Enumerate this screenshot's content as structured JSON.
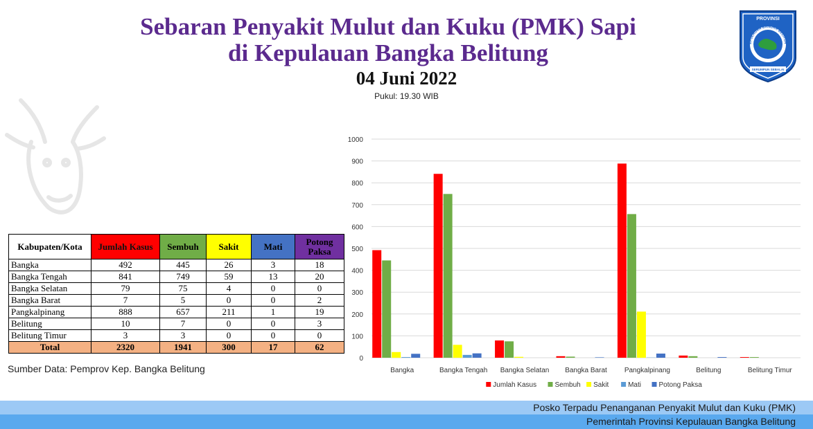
{
  "header": {
    "title_line1": "Sebaran Penyakit Mulut dan Kuku (PMK) Sapi",
    "title_line2": "di Kepulauan Bangka Belitung",
    "date": "04 Juni 2022",
    "time": "Pukul: 19.30 WIB"
  },
  "logo": {
    "top_text": "PROVINSI",
    "ring_text": "KEPULAUAN BANGKA BELITUNG",
    "motto": "SERUMPUN SEBALAI",
    "colors": {
      "shield": "#1f63c4",
      "border": "#ffffff",
      "island": "#2e9e3e"
    }
  },
  "table": {
    "headers": [
      "Kabupaten/Kota",
      "Jumlah Kasus",
      "Sembuh",
      "Sakit",
      "Mati",
      "Potong Paksa"
    ],
    "rows": [
      [
        "Bangka",
        "492",
        "445",
        "26",
        "3",
        "18"
      ],
      [
        "Bangka Tengah",
        "841",
        "749",
        "59",
        "13",
        "20"
      ],
      [
        "Bangka Selatan",
        "79",
        "75",
        "4",
        "0",
        "0"
      ],
      [
        "Bangka Barat",
        "7",
        "5",
        "0",
        "0",
        "2"
      ],
      [
        "Pangkalpinang",
        "888",
        "657",
        "211",
        "1",
        "19"
      ],
      [
        "Belitung",
        "10",
        "7",
        "0",
        "0",
        "3"
      ],
      [
        "Belitung Timur",
        "3",
        "3",
        "0",
        "0",
        "0"
      ]
    ],
    "total": [
      "Total",
      "2320",
      "1941",
      "300",
      "17",
      "62"
    ]
  },
  "source": "Sumber Data: Pemprov Kep. Bangka Belitung",
  "footer": {
    "line1": "Posko Terpadu Penanganan Penyakit Mulut dan Kuku (PMK)",
    "line2": "Pemerintah Provinsi Kepulauan Bangka Belitung"
  },
  "chart_data": {
    "type": "bar",
    "categories": [
      "Bangka",
      "Bangka Tengah",
      "Bangka Selatan",
      "Bangka Barat",
      "Pangkalpinang",
      "Belitung",
      "Belitung Timur"
    ],
    "series": [
      {
        "name": "Jumlah Kasus",
        "color": "#ff0000",
        "values": [
          492,
          841,
          79,
          7,
          888,
          10,
          3
        ]
      },
      {
        "name": "Sembuh",
        "color": "#70ad47",
        "values": [
          445,
          749,
          75,
          5,
          657,
          7,
          3
        ]
      },
      {
        "name": "Sakit",
        "color": "#ffff00",
        "values": [
          26,
          59,
          4,
          0,
          211,
          0,
          0
        ]
      },
      {
        "name": "Mati",
        "color": "#5b9bd5",
        "values": [
          3,
          13,
          0,
          0,
          1,
          0,
          0
        ]
      },
      {
        "name": "Potong Paksa",
        "color": "#4472c4",
        "values": [
          18,
          20,
          0,
          2,
          19,
          3,
          0
        ]
      }
    ],
    "ylim": [
      0,
      1000
    ],
    "yticks": [
      0,
      100,
      200,
      300,
      400,
      500,
      600,
      700,
      800,
      900,
      1000
    ],
    "grid": true,
    "legend": "bottom"
  }
}
